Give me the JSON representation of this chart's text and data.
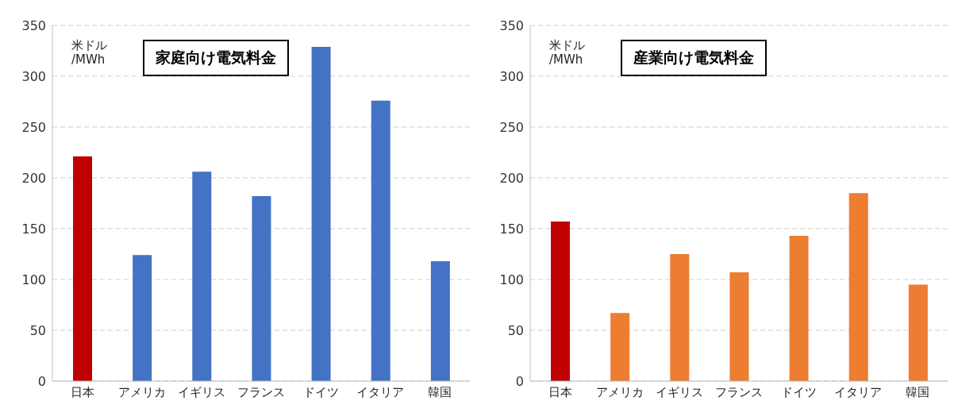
{
  "chart_data": [
    {
      "type": "bar",
      "title": "家庭向け電気料金",
      "ylabel": "米ドル\n/MWh",
      "categories": [
        "日本",
        "アメリカ",
        "イギリス",
        "フランス",
        "ドイツ",
        "イタリア",
        "韓国"
      ],
      "values": [
        221,
        124,
        206,
        182,
        329,
        276,
        118
      ],
      "colors": [
        "#c00000",
        "#4472c4",
        "#4472c4",
        "#4472c4",
        "#4472c4",
        "#4472c4",
        "#4472c4"
      ],
      "ylim": [
        0,
        350
      ],
      "yticks": [
        0,
        50,
        100,
        150,
        200,
        250,
        300,
        350
      ],
      "grid": "y",
      "legend": false
    },
    {
      "type": "bar",
      "title": "産業向け電気料金",
      "ylabel": "米ドル\n/MWh",
      "categories": [
        "日本",
        "アメリカ",
        "イギリス",
        "フランス",
        "ドイツ",
        "イタリア",
        "韓国"
      ],
      "values": [
        157,
        67,
        125,
        107,
        143,
        185,
        95
      ],
      "colors": [
        "#c00000",
        "#ed7d31",
        "#ed7d31",
        "#ed7d31",
        "#ed7d31",
        "#ed7d31",
        "#ed7d31"
      ],
      "ylim": [
        0,
        350
      ],
      "yticks": [
        0,
        50,
        100,
        150,
        200,
        250,
        300,
        350
      ],
      "grid": "y",
      "legend": false
    }
  ]
}
